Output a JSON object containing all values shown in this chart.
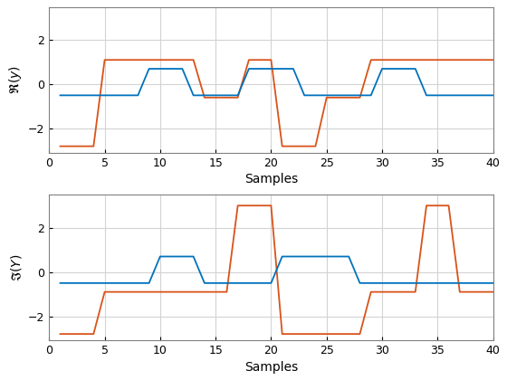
{
  "xlabel": "Samples",
  "ylabel1": "$\\mathfrak{R}(y)$",
  "ylabel2": "$\\mathfrak{I}(Y)$",
  "xlim": [
    0,
    40
  ],
  "ylim1": [
    -3.1,
    3.5
  ],
  "ylim2": [
    -3.1,
    3.5
  ],
  "yticks1": [
    -2,
    0,
    2
  ],
  "yticks2": [
    -2,
    0,
    2
  ],
  "xticks": [
    0,
    5,
    10,
    15,
    20,
    25,
    30,
    35,
    40
  ],
  "color_orange": "#D95319",
  "color_blue": "#0072BD",
  "linewidth": 1.3,
  "background": "#ffffff",
  "re_orange_x": [
    1,
    4,
    4,
    5,
    5,
    13,
    13,
    14,
    14,
    17,
    17,
    18,
    18,
    20,
    20,
    21,
    21,
    24,
    24,
    25,
    25,
    28,
    28,
    29,
    29,
    33,
    33,
    40
  ],
  "re_orange_y": [
    -2.8,
    -2.8,
    -2.8,
    1.1,
    1.1,
    1.1,
    1.1,
    -0.6,
    -0.6,
    -0.6,
    -0.6,
    1.1,
    1.1,
    1.1,
    1.1,
    -2.8,
    -2.8,
    -2.8,
    -2.8,
    -0.6,
    -0.6,
    -0.6,
    -0.6,
    1.1,
    1.1,
    1.1,
    1.1,
    1.1
  ],
  "re_blue_x": [
    1,
    8,
    8,
    9,
    9,
    12,
    12,
    13,
    13,
    17,
    17,
    18,
    18,
    22,
    22,
    23,
    23,
    29,
    29,
    30,
    30,
    33,
    33,
    34,
    34,
    40
  ],
  "re_blue_y": [
    -0.5,
    -0.5,
    -0.5,
    0.7,
    0.7,
    0.7,
    0.7,
    -0.5,
    -0.5,
    -0.5,
    -0.5,
    0.7,
    0.7,
    0.7,
    0.7,
    -0.5,
    -0.5,
    -0.5,
    -0.5,
    0.7,
    0.7,
    0.7,
    0.7,
    -0.5,
    -0.5,
    -0.5
  ],
  "im_orange_x": [
    1,
    4,
    4,
    5,
    5,
    16,
    16,
    17,
    17,
    20,
    20,
    21,
    21,
    28,
    28,
    29,
    29,
    33,
    33,
    34,
    34,
    36,
    36,
    37,
    37,
    40
  ],
  "im_orange_y": [
    -2.8,
    -2.8,
    -2.8,
    -0.9,
    -0.9,
    -0.9,
    -0.9,
    3.0,
    3.0,
    3.0,
    3.0,
    -2.8,
    -2.8,
    -2.8,
    -2.8,
    -0.9,
    -0.9,
    -0.9,
    -0.9,
    3.0,
    3.0,
    3.0,
    3.0,
    -0.9,
    -0.9,
    -0.9
  ],
  "im_blue_x": [
    1,
    9,
    9,
    10,
    10,
    13,
    13,
    14,
    14,
    20,
    20,
    21,
    21,
    27,
    27,
    28,
    28,
    40
  ],
  "im_blue_y": [
    -0.5,
    -0.5,
    -0.5,
    0.7,
    0.7,
    0.7,
    0.7,
    -0.5,
    -0.5,
    -0.5,
    -0.5,
    0.7,
    0.7,
    0.7,
    0.7,
    -0.5,
    -0.5,
    -0.5
  ]
}
